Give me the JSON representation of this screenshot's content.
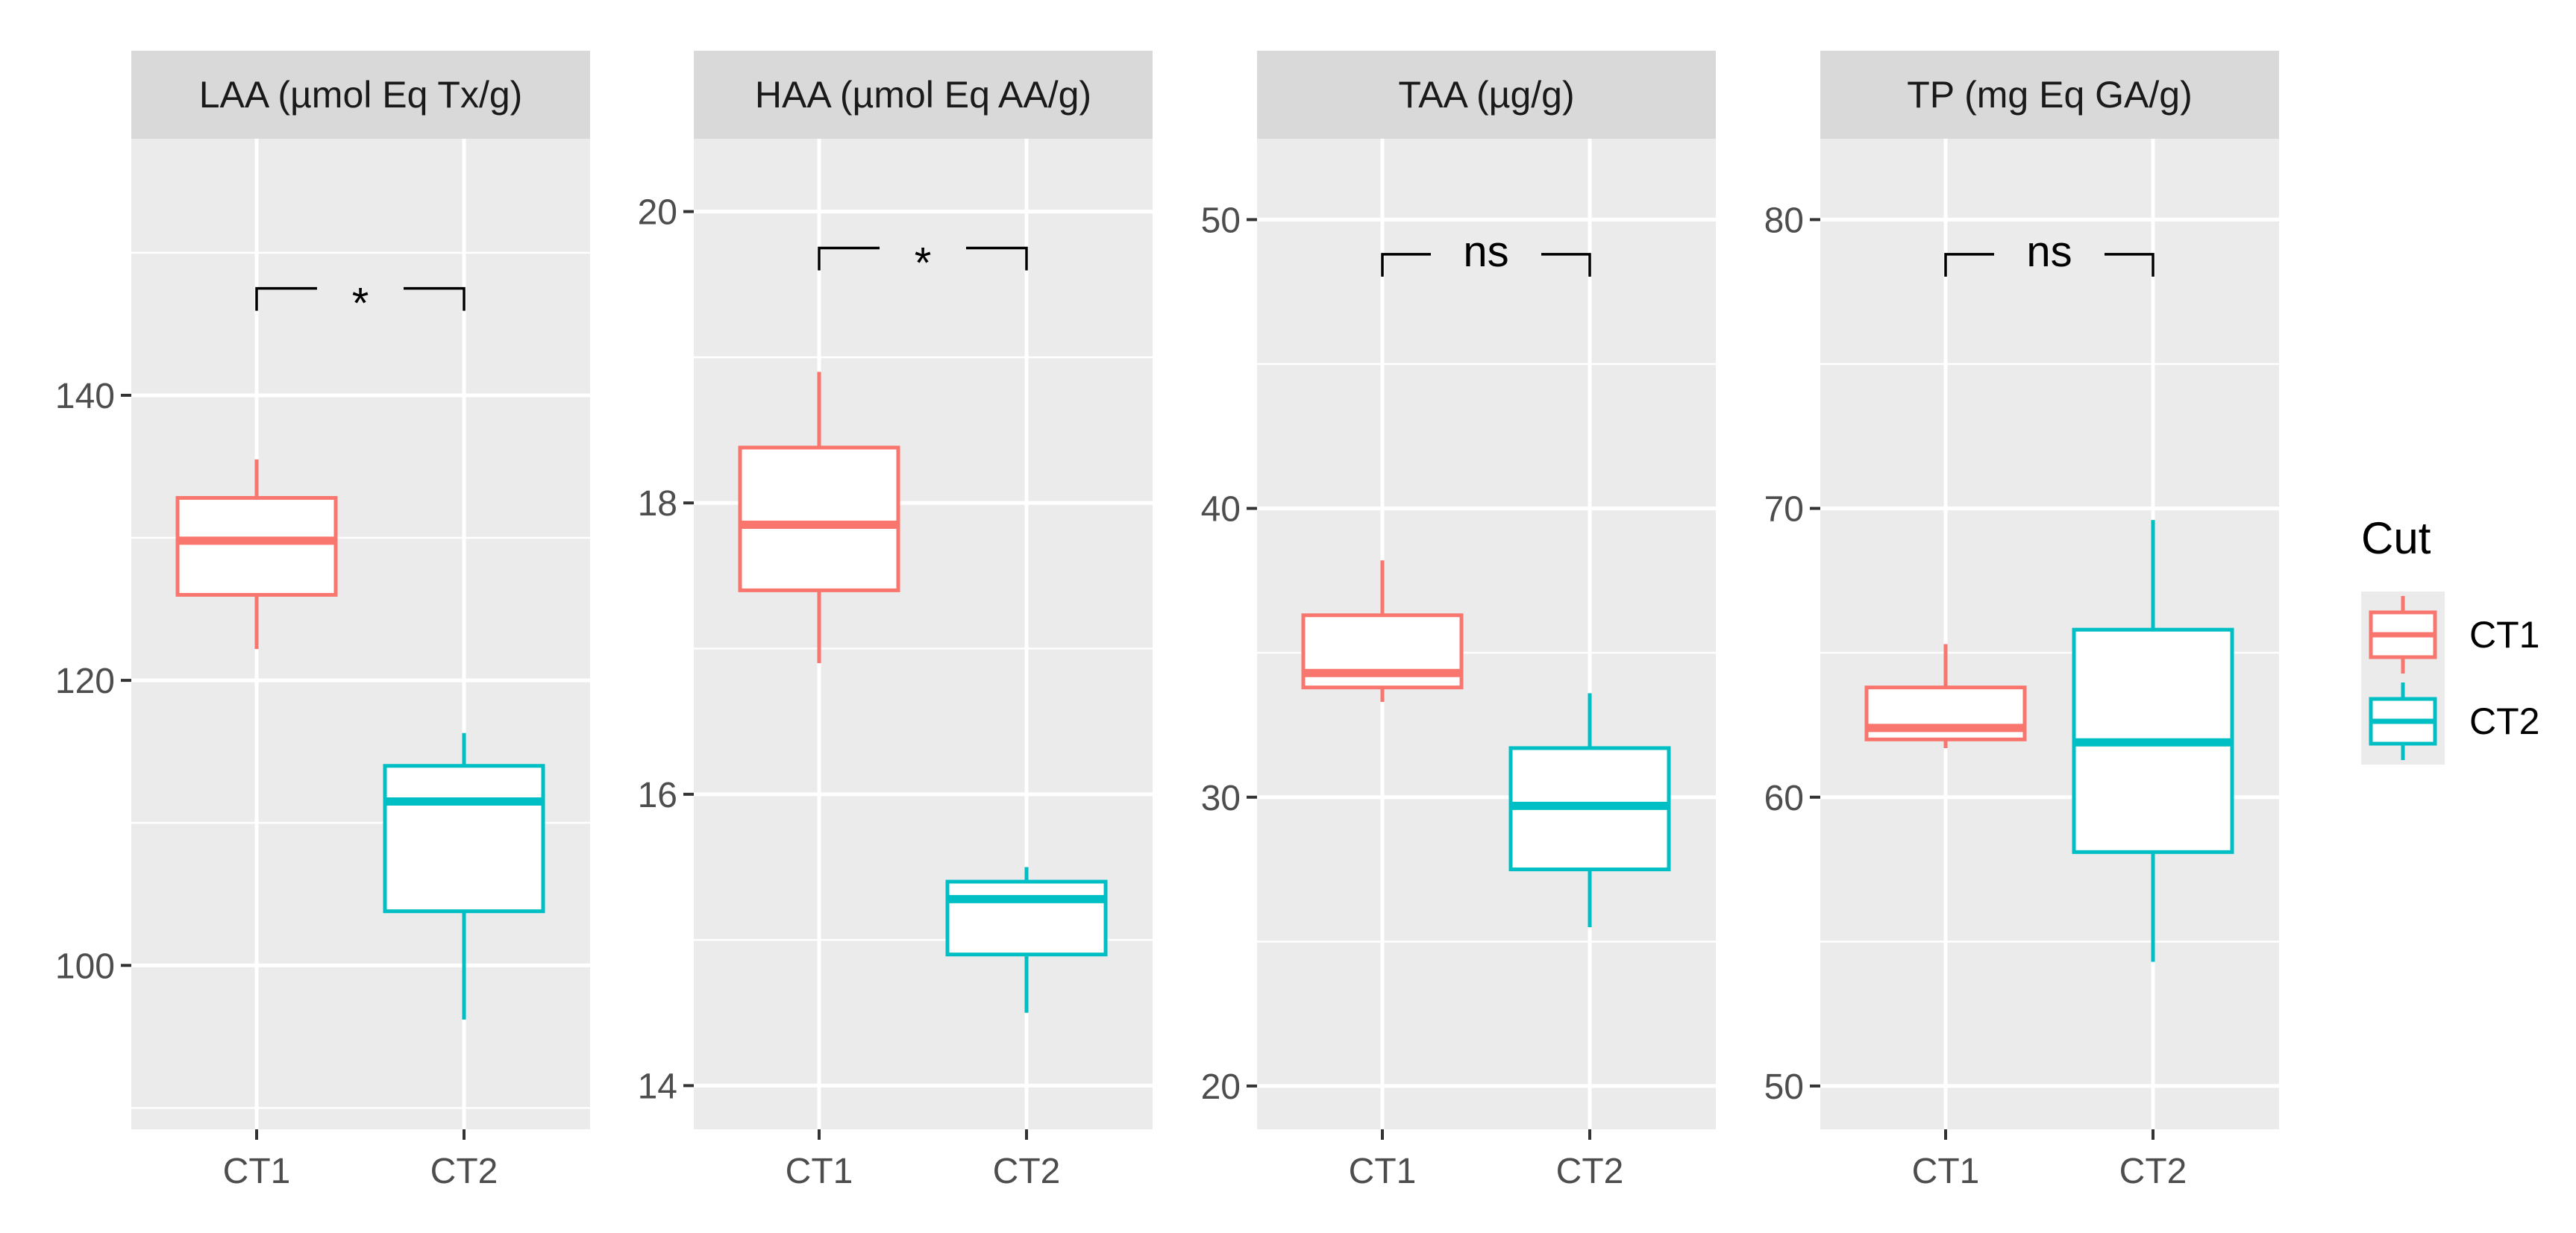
{
  "chart_data": {
    "type": "boxplot",
    "x_categories": [
      "CT1",
      "CT2"
    ],
    "grid": true,
    "legend": {
      "title": "Cut",
      "position": "right",
      "entries": [
        {
          "label": "CT1",
          "color": "#F8766D"
        },
        {
          "label": "CT2",
          "color": "#00BFC4"
        }
      ]
    },
    "facets": [
      {
        "strip": "LAA (µmol Eq Tx/g)",
        "ylim": [
          88.5,
          158
        ],
        "yticks": [
          100,
          120,
          140
        ],
        "significance": "*",
        "bracket_y": 147.5,
        "boxes": [
          {
            "group": "CT1",
            "min": 122.2,
            "q1": 126.0,
            "median": 129.8,
            "q3": 132.8,
            "max": 135.5
          },
          {
            "group": "CT2",
            "min": 96.2,
            "q1": 103.8,
            "median": 111.5,
            "q3": 114.0,
            "max": 116.3
          }
        ]
      },
      {
        "strip": "HAA (µmol Eq  AA/g)",
        "ylim": [
          13.7,
          20.5
        ],
        "yticks": [
          14,
          16,
          18,
          20
        ],
        "significance": "*",
        "bracket_y": 19.75,
        "boxes": [
          {
            "group": "CT1",
            "min": 16.9,
            "q1": 17.4,
            "median": 17.85,
            "q3": 18.38,
            "max": 18.9
          },
          {
            "group": "CT2",
            "min": 14.5,
            "q1": 14.9,
            "median": 15.28,
            "q3": 15.4,
            "max": 15.5
          }
        ]
      },
      {
        "strip": "TAA (µg/g)",
        "ylim": [
          18.5,
          52.8
        ],
        "yticks": [
          20,
          30,
          40,
          50
        ],
        "significance": "ns",
        "bracket_y": 48.8,
        "boxes": [
          {
            "group": "CT1",
            "min": 33.3,
            "q1": 33.8,
            "median": 34.3,
            "q3": 36.3,
            "max": 38.2
          },
          {
            "group": "CT2",
            "min": 25.5,
            "q1": 27.5,
            "median": 29.7,
            "q3": 31.7,
            "max": 33.6
          }
        ]
      },
      {
        "strip": "TP  (mg Eq GA/g)",
        "ylim": [
          48.5,
          82.8
        ],
        "yticks": [
          50,
          60,
          70,
          80
        ],
        "significance": "ns",
        "bracket_y": 78.8,
        "boxes": [
          {
            "group": "CT1",
            "min": 61.7,
            "q1": 62.0,
            "median": 62.4,
            "q3": 63.8,
            "max": 65.3
          },
          {
            "group": "CT2",
            "min": 54.3,
            "q1": 58.1,
            "median": 61.9,
            "q3": 65.8,
            "max": 69.6
          }
        ]
      }
    ]
  }
}
